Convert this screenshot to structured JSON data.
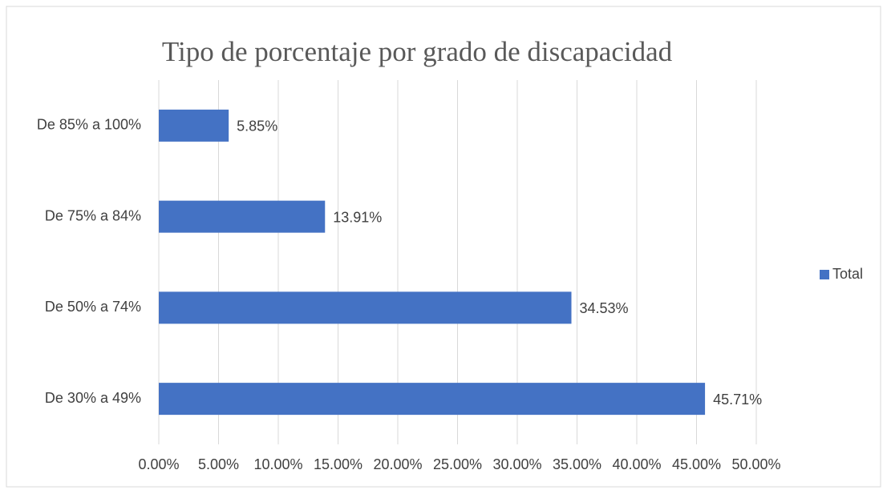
{
  "chart_data": {
    "type": "bar",
    "orientation": "horizontal",
    "title": "Tipo de porcentaje por grado de discapacidad",
    "categories": [
      "De 85% a 100%",
      "De 75% a 84%",
      "De 50% a 74%",
      "De 30% a 49%"
    ],
    "series": [
      {
        "name": "Total",
        "color": "#4472c4",
        "values": [
          5.85,
          13.91,
          34.53,
          45.71
        ],
        "value_labels": [
          "5.85%",
          "13.91%",
          "34.53%",
          "45.71%"
        ]
      }
    ],
    "xlim": [
      0,
      50
    ],
    "xticks": [
      {
        "value": 0,
        "label": "0.00%"
      },
      {
        "value": 5,
        "label": "5.00%"
      },
      {
        "value": 10,
        "label": "10.00%"
      },
      {
        "value": 15,
        "label": "15.00%"
      },
      {
        "value": 20,
        "label": "20.00%"
      },
      {
        "value": 25,
        "label": "25.00%"
      },
      {
        "value": 30,
        "label": "30.00%"
      },
      {
        "value": 35,
        "label": "35.00%"
      },
      {
        "value": 40,
        "label": "40.00%"
      },
      {
        "value": 45,
        "label": "45.00%"
      },
      {
        "value": 50,
        "label": "50.00%"
      }
    ],
    "grid": true,
    "legend": "right"
  }
}
